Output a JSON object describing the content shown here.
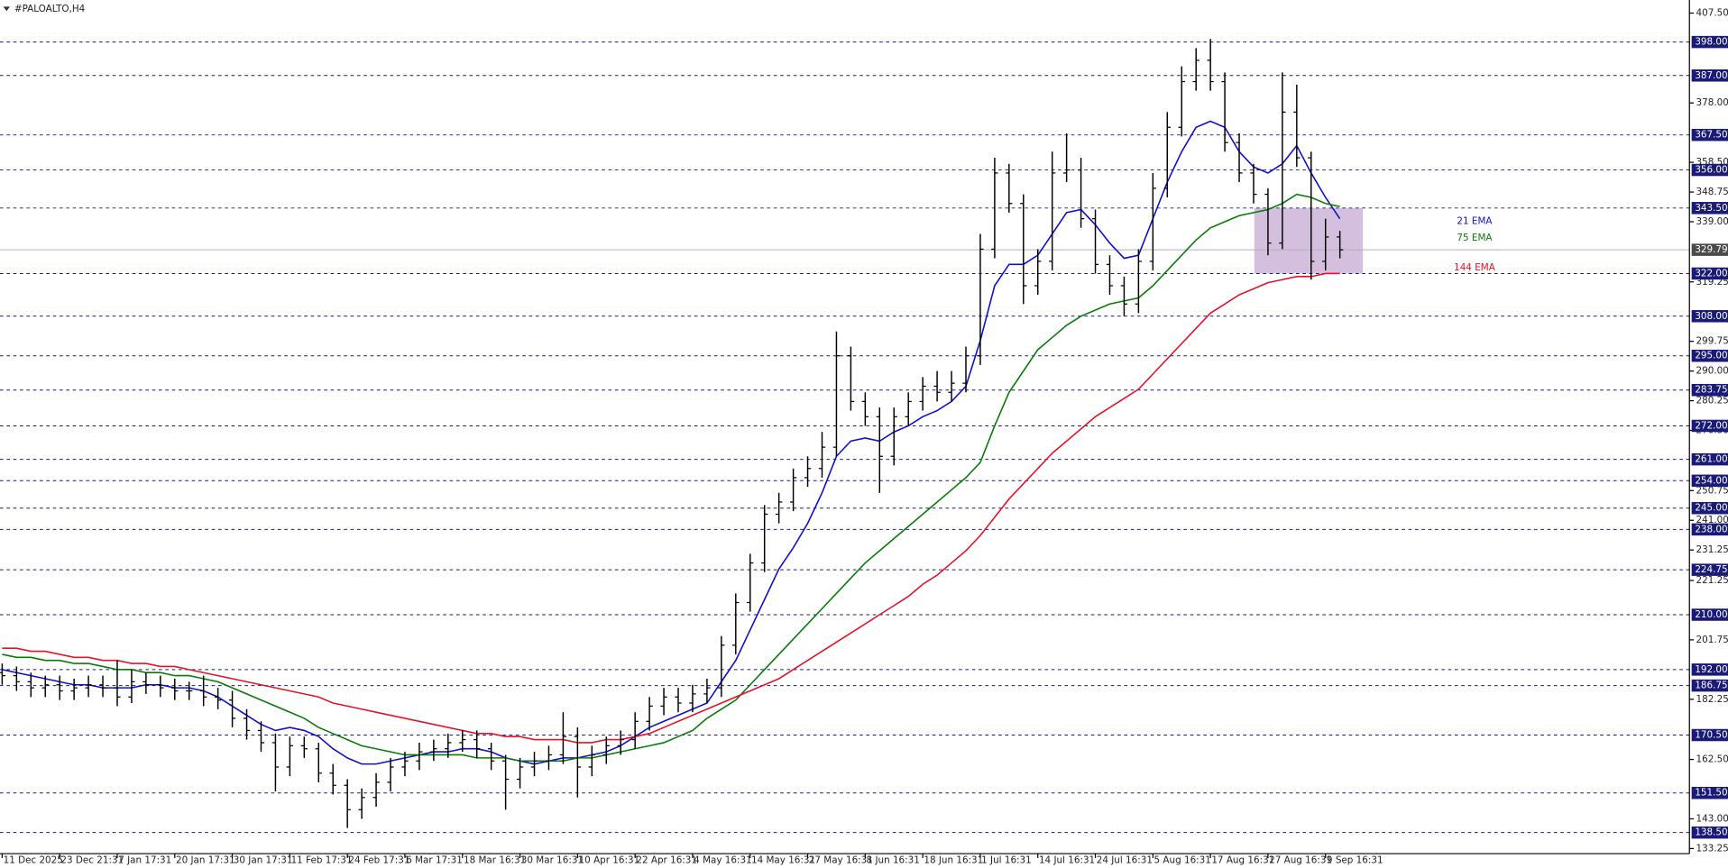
{
  "window_title": "#PALOALTO,H4",
  "chart_data": {
    "type": "ohlc",
    "color": "#000000",
    "open": [
      191,
      190,
      188,
      186,
      187,
      185,
      186,
      187,
      186,
      183,
      188,
      187,
      186,
      185,
      185,
      183,
      182,
      176,
      172,
      168,
      160,
      167,
      166,
      158,
      154,
      146,
      150,
      155,
      160,
      162,
      165,
      166,
      168,
      169,
      166,
      162,
      156,
      160,
      162,
      164,
      170,
      160,
      164,
      167,
      169,
      175,
      180,
      183,
      181,
      184,
      186,
      200,
      214,
      227,
      243,
      247,
      255,
      258,
      265,
      295,
      280,
      275,
      262,
      275,
      280,
      285,
      283,
      286,
      295,
      330,
      355,
      345,
      318,
      326,
      355,
      356,
      340,
      325,
      318,
      312,
      326,
      350,
      370,
      385,
      392,
      385,
      365,
      355,
      348,
      332,
      375,
      360,
      326,
      334
    ],
    "high": [
      194,
      193,
      191,
      190,
      190,
      189,
      190,
      190,
      195,
      192,
      191,
      190,
      189,
      188,
      190,
      186,
      185,
      179,
      175,
      171,
      170,
      170,
      168,
      161,
      156,
      153,
      158,
      163,
      165,
      168,
      169,
      171,
      172,
      172,
      168,
      164,
      163,
      165,
      167,
      178,
      173,
      167,
      170,
      172,
      178,
      183,
      186,
      186,
      187,
      189,
      203,
      217,
      230,
      246,
      250,
      258,
      262,
      270,
      303,
      298,
      283,
      278,
      278,
      283,
      288,
      290,
      290,
      298,
      335,
      360,
      358,
      348,
      330,
      362,
      368,
      360,
      343,
      328,
      321,
      330,
      355,
      375,
      390,
      396,
      399,
      388,
      368,
      358,
      350,
      388,
      384,
      362,
      340,
      336
    ],
    "low": [
      187,
      185,
      183,
      183,
      182,
      182,
      183,
      183,
      180,
      181,
      184,
      183,
      182,
      182,
      180,
      179,
      173,
      169,
      165,
      152,
      157,
      163,
      155,
      151,
      140,
      143,
      147,
      152,
      157,
      159,
      162,
      163,
      165,
      163,
      159,
      146,
      153,
      157,
      159,
      161,
      150,
      157,
      161,
      164,
      166,
      172,
      177,
      178,
      178,
      181,
      183,
      197,
      211,
      224,
      240,
      244,
      252,
      255,
      262,
      277,
      272,
      250,
      259,
      272,
      277,
      280,
      280,
      283,
      292,
      327,
      342,
      312,
      315,
      323,
      352,
      337,
      322,
      315,
      308,
      309,
      323,
      347,
      367,
      382,
      382,
      362,
      352,
      345,
      328,
      330,
      357,
      320,
      323,
      327
    ],
    "close": [
      190,
      188,
      186,
      187,
      185,
      186,
      187,
      186,
      183,
      188,
      187,
      186,
      185,
      185,
      183,
      182,
      176,
      172,
      168,
      160,
      167,
      166,
      158,
      154,
      146,
      150,
      155,
      160,
      162,
      165,
      166,
      168,
      169,
      166,
      162,
      156,
      160,
      162,
      164,
      170,
      160,
      164,
      167,
      169,
      175,
      180,
      183,
      181,
      184,
      186,
      200,
      214,
      227,
      243,
      247,
      255,
      258,
      265,
      295,
      280,
      275,
      262,
      275,
      280,
      285,
      283,
      286,
      295,
      330,
      355,
      345,
      318,
      326,
      355,
      356,
      340,
      325,
      318,
      312,
      326,
      350,
      370,
      385,
      392,
      385,
      365,
      355,
      348,
      332,
      375,
      360,
      326,
      334,
      329.79
    ],
    "series": [
      {
        "name": "21 EMA",
        "color": "#1010c8",
        "values": [
          192,
          191,
          190,
          189,
          188,
          187,
          187,
          186,
          186,
          186,
          187,
          187,
          186,
          186,
          185,
          183,
          180,
          177,
          174,
          172,
          173,
          172,
          170,
          166,
          163,
          161,
          161,
          162,
          163,
          164,
          165,
          165,
          166,
          166,
          165,
          163,
          162,
          161,
          162,
          163,
          163,
          164,
          165,
          167,
          170,
          173,
          175,
          177,
          179,
          181,
          188,
          195,
          205,
          215,
          225,
          232,
          240,
          250,
          262,
          267,
          268,
          267,
          270,
          272,
          275,
          277,
          280,
          285,
          300,
          318,
          325,
          325,
          328,
          335,
          342,
          343,
          338,
          332,
          327,
          328,
          340,
          352,
          362,
          370,
          372,
          370,
          362,
          357,
          355,
          358,
          364,
          355,
          347,
          340
        ]
      },
      {
        "name": "75 EMA",
        "color": "#0a7a0a",
        "values": [
          197,
          196,
          196,
          195,
          195,
          194,
          194,
          193,
          192,
          192,
          191,
          191,
          190,
          190,
          189,
          188,
          186,
          184,
          182,
          180,
          178,
          176,
          173,
          171,
          169,
          167,
          166,
          165,
          164,
          164,
          164,
          164,
          164,
          163,
          163,
          163,
          162,
          162,
          162,
          162,
          163,
          163,
          164,
          165,
          166,
          167,
          168,
          170,
          172,
          176,
          179,
          182,
          187,
          192,
          197,
          202,
          207,
          212,
          217,
          222,
          227,
          231,
          235,
          239,
          243,
          247,
          251,
          255,
          260,
          272,
          283,
          290,
          297,
          301,
          305,
          308,
          310,
          312,
          313,
          314,
          318,
          323,
          328,
          333,
          337,
          339,
          341,
          342,
          343,
          345,
          348,
          347,
          345,
          344
        ]
      },
      {
        "name": "144 EMA",
        "color": "#e0142a",
        "values": [
          199,
          199,
          198,
          198,
          197,
          196,
          196,
          195,
          195,
          194,
          194,
          193,
          193,
          192,
          191,
          190,
          189,
          188,
          187,
          186,
          185,
          184,
          183,
          181,
          180,
          179,
          178,
          177,
          176,
          175,
          174,
          173,
          172,
          171,
          171,
          170,
          170,
          169,
          169,
          169,
          168,
          168,
          169,
          169,
          170,
          171,
          173,
          175,
          177,
          179,
          181,
          183,
          185,
          187,
          189,
          192,
          195,
          198,
          201,
          204,
          207,
          210,
          213,
          216,
          220,
          223,
          227,
          231,
          236,
          242,
          248,
          253,
          258,
          263,
          267,
          271,
          275,
          278,
          281,
          284,
          289,
          294,
          299,
          304,
          309,
          312,
          315,
          317,
          319,
          320,
          321,
          321,
          322,
          322
        ]
      }
    ],
    "xlim": [
      -0.15,
      117.3
    ],
    "xticks": [
      {
        "value": 0,
        "label": "11 Dec 2025"
      },
      {
        "value": 4,
        "label": "23 Dec 21:31"
      },
      {
        "value": 8,
        "label": "7 Jan 17:31"
      },
      {
        "value": 12,
        "label": "20 Jan 17:31"
      },
      {
        "value": 16,
        "label": "30 Jan 17:31"
      },
      {
        "value": 20,
        "label": "11 Feb 17:31"
      },
      {
        "value": 24,
        "label": "24 Feb 17:31"
      },
      {
        "value": 28,
        "label": "6 Mar 17:31"
      },
      {
        "value": 32,
        "label": "18 Mar 16:31"
      },
      {
        "value": 36,
        "label": "30 Mar 16:31"
      },
      {
        "value": 40,
        "label": "10 Apr 16:31"
      },
      {
        "value": 44,
        "label": "22 Apr 16:31"
      },
      {
        "value": 48,
        "label": "4 May 16:31"
      },
      {
        "value": 52,
        "label": "14 May 16:31"
      },
      {
        "value": 56,
        "label": "27 May 16:31"
      },
      {
        "value": 60,
        "label": "8 Jun 16:31"
      },
      {
        "value": 64,
        "label": "18 Jun 16:31"
      },
      {
        "value": 68,
        "label": "1 Jul 16:31"
      },
      {
        "value": 72,
        "label": "14 Jul 16:31"
      },
      {
        "value": 76,
        "label": "24 Jul 16:31"
      },
      {
        "value": 80,
        "label": "5 Aug 16:31"
      },
      {
        "value": 84,
        "label": "17 Aug 16:31"
      },
      {
        "value": 88,
        "label": "27 Aug 16:31"
      },
      {
        "value": 92,
        "label": "9 Sep 16:31"
      }
    ],
    "ylim": [
      131.58,
      411.79
    ],
    "yticks": [
      {
        "value": 407.5,
        "label": "407.50"
      },
      {
        "value": 378,
        "label": "378.00"
      },
      {
        "value": 358.5,
        "label": "358.50"
      },
      {
        "value": 348.75,
        "label": "348.75"
      },
      {
        "value": 339,
        "label": "339.00"
      },
      {
        "value": 319.25,
        "label": "319.25"
      },
      {
        "value": 299.75,
        "label": "299.75"
      },
      {
        "value": 290,
        "label": "290.00"
      },
      {
        "value": 280.25,
        "label": "280.25"
      },
      {
        "value": 270.5,
        "label": "270.50"
      },
      {
        "value": 250.75,
        "label": "250.75"
      },
      {
        "value": 241,
        "label": "241.00"
      },
      {
        "value": 231.25,
        "label": "231.25"
      },
      {
        "value": 221.25,
        "label": "221.25"
      },
      {
        "value": 201.75,
        "label": "201.75"
      },
      {
        "value": 182.25,
        "label": "182.25"
      },
      {
        "value": 162.5,
        "label": "162.50"
      },
      {
        "value": 143,
        "label": "143.00"
      },
      {
        "value": 133.25,
        "label": "133.25"
      }
    ],
    "levels": [
      {
        "value": 398,
        "label": "398.00"
      },
      {
        "value": 387,
        "label": "387.00"
      },
      {
        "value": 367.5,
        "label": "367.50"
      },
      {
        "value": 356,
        "label": "356.00"
      },
      {
        "value": 343.5,
        "label": "343.50"
      },
      {
        "value": 322,
        "label": "322.00"
      },
      {
        "value": 308,
        "label": "308.00"
      },
      {
        "value": 295,
        "label": "295.00"
      },
      {
        "value": 283.75,
        "label": "283.75"
      },
      {
        "value": 272,
        "label": "272.00"
      },
      {
        "value": 261,
        "label": "261.00"
      },
      {
        "value": 254,
        "label": "254.00"
      },
      {
        "value": 245,
        "label": "245.00"
      },
      {
        "value": 238,
        "label": "238.00"
      },
      {
        "value": 224.75,
        "label": "224.75"
      },
      {
        "value": 210,
        "label": "210.00"
      },
      {
        "value": 192,
        "label": "192.00"
      },
      {
        "value": 186.75,
        "label": "186.75"
      },
      {
        "value": 170.5,
        "label": "170.50"
      },
      {
        "value": 151.5,
        "label": "151.50"
      },
      {
        "value": 138.5,
        "label": "138.50"
      }
    ],
    "level_color": "#1a1a78",
    "current_price": {
      "value": 329.79,
      "label": "329.79"
    },
    "range_box": {
      "x": [
        87.05,
        94.6
      ],
      "y": [
        322,
        343.5
      ],
      "color": "#cdb4d8"
    }
  }
}
